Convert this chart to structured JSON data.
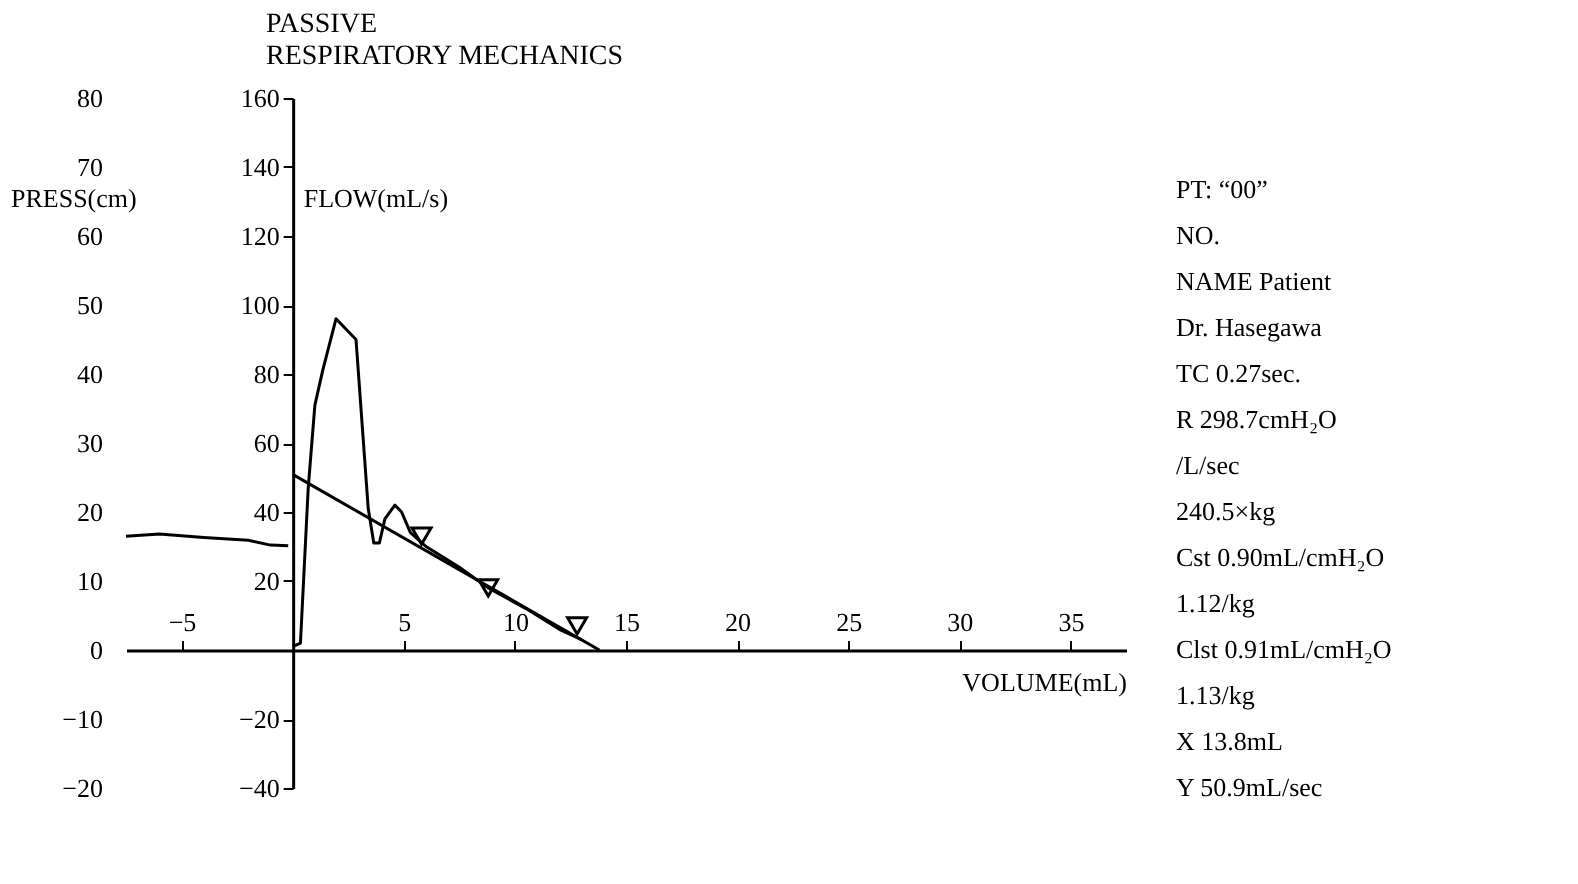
{
  "chart_data": {
    "type": "line",
    "title": "PASSIVE\nRESPIRATORY MECHANICS",
    "xlabel": "VOLUME(mL)",
    "ylabel": "FLOW(mL/s)",
    "y2label": "PRESS(cm)",
    "xlim": [
      -7.5,
      37.5
    ],
    "xticks": [
      -5,
      5,
      10,
      15,
      20,
      25,
      30,
      35
    ],
    "ylim": [
      -40,
      160
    ],
    "yticks": [
      -40,
      -20,
      20,
      40,
      60,
      80,
      100,
      120,
      140,
      160
    ],
    "y2lim": [
      -20,
      80
    ],
    "y2ticks": [
      -20,
      -10,
      0,
      10,
      20,
      30,
      40,
      50,
      60,
      70,
      80
    ],
    "grid": false,
    "marker": "none",
    "line_style": "solid",
    "series": [
      {
        "color": "#000000",
        "x": [
          0,
          0.35,
          0.7,
          1.0,
          1.35,
          1.95,
          2.85,
          3.4,
          3.65,
          3.9,
          4.15,
          4.6,
          4.9,
          5.3,
          6.0,
          7.5,
          8.8,
          10.5,
          12.0,
          13.0
        ],
        "values": [
          1,
          2,
          47,
          71,
          81,
          96,
          90,
          41,
          31,
          31,
          38,
          42,
          40,
          34,
          30,
          24,
          18,
          12,
          6,
          3
        ]
      },
      {
        "color": "#000000",
        "x": [
          0,
          13.8
        ],
        "values": [
          50.9,
          0
        ]
      },
      {
        "type": "scatter",
        "marker": "triangle",
        "color": "#000000",
        "x": [
          5.8,
          8.8,
          12.8
        ],
        "values": [
          33,
          18,
          7
        ]
      },
      {
        "axis": "y2",
        "color": "#000000",
        "x": [
          -7.5,
          -6,
          -4,
          -2,
          -1,
          -0.2
        ],
        "values": [
          16.5,
          16.8,
          16.3,
          15.9,
          15.2,
          15.1
        ]
      }
    ],
    "annotations": [
      "PT: “00”",
      "NO.",
      "NAME Patient",
      "Dr. Hasegawa",
      "TC 0.27sec.",
      "R 298.7cmH₂O",
      "/L/sec",
      "240.5×kg",
      "Cst 0.90mL/cmH₂O",
      "1.12/kg",
      "Clst 0.91mL/cmH₂O",
      "1.13/kg",
      "X 13.8mL",
      "Y 50.9mL/sec"
    ]
  }
}
